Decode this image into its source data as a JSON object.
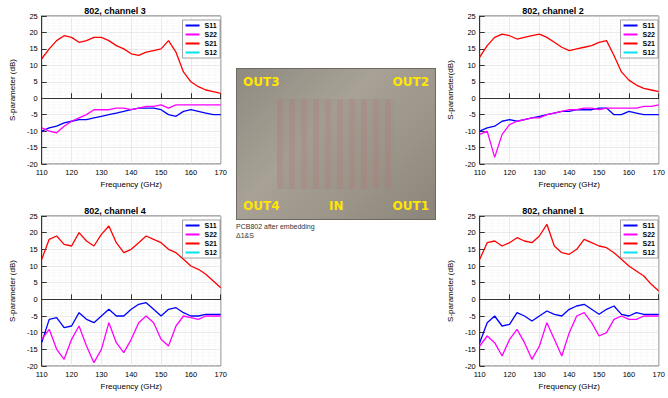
{
  "chart_data": [
    {
      "type": "line",
      "title": "802, channel 3",
      "x_label": "Frequency (GHz)",
      "y_label": "S-parameter (dB)",
      "x": [
        110,
        112.5,
        115,
        117.5,
        120,
        122.5,
        125,
        127.5,
        130,
        132.5,
        135,
        137.5,
        140,
        142.5,
        145,
        147.5,
        150,
        152.5,
        155,
        157.5,
        160,
        162.5,
        165,
        167.5,
        170
      ],
      "xlim": [
        110,
        170
      ],
      "xticks": [
        110,
        120,
        130,
        140,
        150,
        160,
        170
      ],
      "ylim": [
        -20,
        25
      ],
      "yticks": [
        -20,
        -15,
        -10,
        -5,
        0,
        5,
        10,
        15,
        20,
        25
      ],
      "grid": true,
      "legend": "upper right",
      "series": [
        {
          "name": "S11",
          "color": "#0000ff",
          "values": [
            -10,
            -9,
            -8.5,
            -7.5,
            -7,
            -6.5,
            -6.5,
            -6,
            -5.5,
            -5,
            -4.5,
            -4,
            -3.5,
            -3,
            -3,
            -3,
            -3.5,
            -5,
            -5.5,
            -4,
            -3.5,
            -4,
            -4.5,
            -5,
            -5
          ]
        },
        {
          "name": "S22",
          "color": "#ff00ff",
          "values": [
            -9,
            -10,
            -10.5,
            -8.5,
            -7,
            -6,
            -5,
            -3.5,
            -3.5,
            -3.5,
            -3,
            -3,
            -3.5,
            -3,
            -2.5,
            -2.5,
            -2,
            -3,
            -2,
            -2,
            -2,
            -2,
            -2,
            -2,
            -2
          ]
        },
        {
          "name": "S21",
          "color": "#ff0000",
          "values": [
            12,
            15,
            17.5,
            19,
            18.5,
            17,
            17.5,
            18.5,
            18.5,
            17.5,
            16,
            15,
            13.5,
            13,
            14,
            14.5,
            15,
            17.5,
            14,
            8,
            5,
            3.5,
            2.5,
            2,
            1.5
          ]
        },
        {
          "name": "S12",
          "color": "#00e5ee",
          "values": [
            null,
            null,
            null,
            null,
            null,
            null,
            null,
            null,
            null,
            null,
            null,
            null,
            null,
            null,
            null,
            null,
            null,
            null,
            null,
            null,
            null,
            null,
            null,
            null,
            null
          ]
        }
      ]
    },
    {
      "type": "line",
      "title": "802, channel 2",
      "x_label": "Frequency (GHz)",
      "y_label": "S-parameter(dB)",
      "x": [
        110,
        112.5,
        115,
        117.5,
        120,
        122.5,
        125,
        127.5,
        130,
        132.5,
        135,
        137.5,
        140,
        142.5,
        145,
        147.5,
        150,
        152.5,
        155,
        157.5,
        160,
        162.5,
        165,
        167.5,
        170
      ],
      "xlim": [
        110,
        170
      ],
      "xticks": [
        110,
        120,
        130,
        140,
        150,
        160,
        170
      ],
      "ylim": [
        -20,
        25
      ],
      "yticks": [
        -20,
        -15,
        -10,
        -5,
        0,
        5,
        10,
        15,
        20,
        25
      ],
      "grid": true,
      "legend": "upper right",
      "series": [
        {
          "name": "S11",
          "color": "#0000ff",
          "values": [
            -10,
            -9,
            -8.5,
            -7,
            -6.5,
            -7,
            -6.5,
            -6,
            -5.5,
            -5,
            -4.5,
            -4,
            -4,
            -3.5,
            -3.5,
            -3.5,
            -3,
            -3,
            -5,
            -5,
            -4,
            -4.5,
            -5,
            -5,
            -5
          ]
        },
        {
          "name": "S22",
          "color": "#ff00ff",
          "values": [
            -11,
            -10,
            -18,
            -11,
            -8,
            -7,
            -6.5,
            -6,
            -6,
            -5,
            -4.5,
            -4,
            -3.5,
            -3.5,
            -3,
            -3,
            -3.5,
            -3,
            -3,
            -3,
            -3,
            -3,
            -2.5,
            -2.5,
            -2
          ]
        },
        {
          "name": "S21",
          "color": "#ff0000",
          "values": [
            12.5,
            16,
            18.5,
            19.5,
            19,
            18,
            18.5,
            19,
            19.5,
            18.5,
            17,
            15.5,
            14.5,
            15,
            15.5,
            16,
            17,
            17.5,
            13,
            8,
            5.5,
            4,
            3,
            2.5,
            2
          ]
        },
        {
          "name": "S12",
          "color": "#00e5ee",
          "values": [
            null,
            null,
            null,
            null,
            null,
            null,
            null,
            null,
            null,
            null,
            null,
            null,
            null,
            null,
            null,
            null,
            null,
            null,
            null,
            null,
            null,
            null,
            null,
            null,
            null
          ]
        }
      ]
    },
    {
      "type": "line",
      "title": "802, channel 4",
      "x_label": "Frequency (GHz)",
      "y_label": "S-parameter (dB)",
      "x": [
        110,
        112.5,
        115,
        117.5,
        120,
        122.5,
        125,
        127.5,
        130,
        132.5,
        135,
        137.5,
        140,
        142.5,
        145,
        147.5,
        150,
        152.5,
        155,
        157.5,
        160,
        162.5,
        165,
        167.5,
        170
      ],
      "xlim": [
        110,
        170
      ],
      "xticks": [
        110,
        120,
        130,
        140,
        150,
        160,
        170
      ],
      "ylim": [
        -20,
        25
      ],
      "yticks": [
        -20,
        -15,
        -10,
        -5,
        0,
        5,
        10,
        15,
        20,
        25
      ],
      "grid": true,
      "legend": "upper right",
      "series": [
        {
          "name": "S11",
          "color": "#0000ff",
          "values": [
            -13,
            -6,
            -5.5,
            -8.5,
            -8,
            -4,
            -6,
            -7,
            -5,
            -3,
            -5,
            -5,
            -3,
            -1.5,
            -1,
            -3,
            -5,
            -3,
            -2.5,
            -4,
            -5,
            -5,
            -4.5,
            -4.5,
            -4.5
          ]
        },
        {
          "name": "S22",
          "color": "#ff00ff",
          "values": [
            -12,
            -9,
            -15,
            -18,
            -12,
            -8,
            -14,
            -19,
            -15,
            -7,
            -13,
            -16,
            -12,
            -7,
            -5,
            -7,
            -12,
            -14,
            -8,
            -5,
            -5.5,
            -6,
            -5,
            -5,
            -5
          ]
        },
        {
          "name": "S21",
          "color": "#ff0000",
          "values": [
            12,
            18,
            19,
            16.5,
            16,
            20,
            17.5,
            16,
            19.5,
            22,
            17,
            14,
            15,
            17,
            19,
            18,
            17,
            15,
            14,
            12,
            10,
            9,
            7.5,
            5.5,
            3.5
          ]
        },
        {
          "name": "S12",
          "color": "#00e5ee",
          "values": [
            null,
            null,
            null,
            null,
            null,
            null,
            null,
            null,
            null,
            null,
            null,
            null,
            null,
            null,
            null,
            null,
            null,
            null,
            null,
            null,
            null,
            null,
            null,
            null,
            null
          ]
        }
      ]
    },
    {
      "type": "line",
      "title": "802, channel 1",
      "x_label": "Frequency (GHz)",
      "y_label": "S-parameter (dB)",
      "x": [
        110,
        112.5,
        115,
        117.5,
        120,
        122.5,
        125,
        127.5,
        130,
        132.5,
        135,
        137.5,
        140,
        142.5,
        145,
        147.5,
        150,
        152.5,
        155,
        157.5,
        160,
        162.5,
        165,
        167.5,
        170
      ],
      "xlim": [
        110,
        170
      ],
      "xticks": [
        110,
        120,
        130,
        140,
        150,
        160,
        170
      ],
      "ylim": [
        -20,
        25
      ],
      "yticks": [
        -20,
        -15,
        -10,
        -5,
        0,
        5,
        10,
        15,
        20,
        25
      ],
      "grid": true,
      "legend": "upper right",
      "series": [
        {
          "name": "S11",
          "color": "#0000ff",
          "values": [
            -13,
            -7,
            -5,
            -8,
            -7.5,
            -4,
            -5,
            -6.5,
            -5,
            -3.5,
            -4.5,
            -5,
            -3,
            -2,
            -1.5,
            -3,
            -4.5,
            -3,
            -2,
            -4.5,
            -5,
            -4,
            -4.5,
            -4.5,
            -4.5
          ]
        },
        {
          "name": "S22",
          "color": "#ff00ff",
          "values": [
            -14,
            -11,
            -13,
            -17,
            -12,
            -9,
            -13,
            -18,
            -14,
            -7,
            -12,
            -17,
            -10,
            -5,
            -4,
            -7,
            -11,
            -10,
            -6,
            -5,
            -6,
            -6,
            -5,
            -5,
            -5
          ]
        },
        {
          "name": "S21",
          "color": "#ff0000",
          "values": [
            12,
            17,
            17.5,
            16,
            17,
            18.5,
            17.5,
            17,
            19,
            22.5,
            16,
            14,
            13.5,
            15,
            18,
            17,
            16,
            15.5,
            14,
            12,
            10,
            8.5,
            7,
            4.5,
            2.5
          ]
        },
        {
          "name": "S12",
          "color": "#00e5ee",
          "values": [
            null,
            null,
            null,
            null,
            null,
            null,
            null,
            null,
            null,
            null,
            null,
            null,
            null,
            null,
            null,
            null,
            null,
            null,
            null,
            null,
            null,
            null,
            null,
            null,
            null
          ]
        }
      ]
    }
  ],
  "photo": {
    "labels": [
      "OUT3",
      "OUT2",
      "OUT4",
      "IN",
      "OUT1"
    ],
    "caption": [
      "PCB802 after embedding",
      "Δ1&S"
    ]
  }
}
